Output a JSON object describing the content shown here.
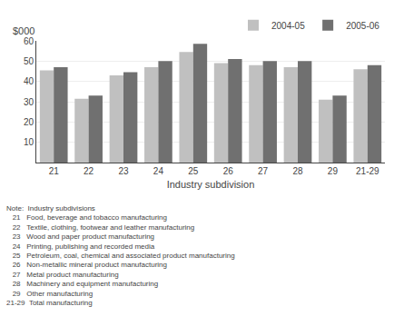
{
  "chart_data": {
    "type": "bar",
    "xlabel": "Industry subdivision",
    "ylabel": "$000",
    "categories": [
      "21",
      "22",
      "23",
      "24",
      "25",
      "26",
      "27",
      "28",
      "29",
      "21-29"
    ],
    "series": [
      {
        "name": "2004-05",
        "color": "#c0c0c0",
        "values": [
          45.5,
          31.5,
          43.0,
          47.0,
          54.5,
          49.0,
          48.0,
          47.0,
          31.0,
          46.0
        ]
      },
      {
        "name": "2005-06",
        "color": "#707070",
        "values": [
          47.0,
          33.0,
          44.5,
          50.0,
          58.5,
          51.0,
          50.0,
          50.0,
          33.0,
          48.0
        ]
      }
    ],
    "ylim": [
      0,
      60
    ],
    "yticks": [
      10,
      20,
      30,
      40,
      50,
      60
    ],
    "grid": true,
    "legend": "upper right",
    "annotations": [
      "Note:  Industry subdivisions",
      "   21   Food, beverage and tobacco manufacturing",
      "   22   Textile, clothing, footwear and leather manufacturing",
      "   23   Wood and paper product manufacturing",
      "   24   Printing, publishing and recorded media",
      "   25   Petroleum, coal, chemical and associated product manufacturing",
      "   26   Non-metallic mineral product manufacturing",
      "   27   Metal product manufacturing",
      "   28   Machinery and equipment manufacturing",
      "   29   Other manufacturing",
      "21-29  Total manufacturing"
    ]
  }
}
